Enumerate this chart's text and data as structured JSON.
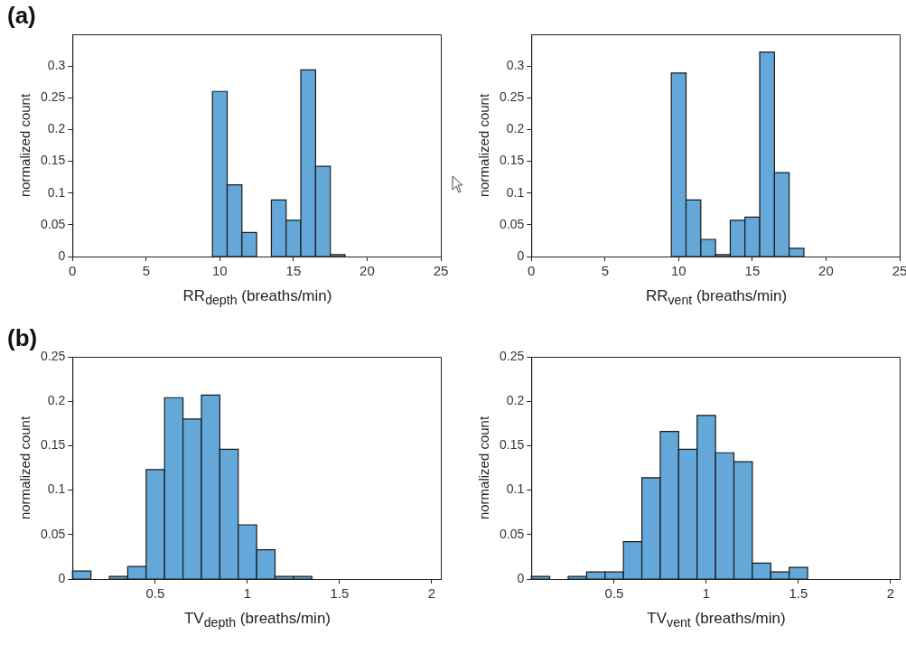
{
  "chart_data": [
    {
      "type": "histogram",
      "annotations": [
        "(a)"
      ],
      "xlabel": "RR$_{depth}$ (breaths/min)",
      "ylabel": "normalized count",
      "color": "#63a8d8",
      "grid": false,
      "bins": [
        9.5,
        10.5,
        11.5,
        12.5,
        13.5,
        14.5,
        15.5,
        16.5,
        17.5,
        18.5
      ],
      "values": [
        0.26,
        0.113,
        0.038,
        0,
        0.089,
        0.057,
        0.294,
        0.142,
        0.003
      ],
      "xlim": [
        0,
        25
      ],
      "xticks": [
        0,
        5,
        10,
        15,
        20,
        25
      ],
      "ylim": [
        0,
        0.35
      ],
      "yticks": [
        0,
        0.05,
        0.1,
        0.15,
        0.2,
        0.25,
        0.3
      ]
    },
    {
      "type": "histogram",
      "xlabel": "RR$_{vent}$ (breaths/min)",
      "ylabel": "normalized count",
      "color": "#63a8d8",
      "grid": false,
      "bins": [
        9.5,
        10.5,
        11.5,
        12.5,
        13.5,
        14.5,
        15.5,
        16.5,
        17.5,
        18.5
      ],
      "values": [
        0.289,
        0.089,
        0.027,
        0.003,
        0.057,
        0.062,
        0.322,
        0.132,
        0.013
      ],
      "xlim": [
        0,
        25
      ],
      "xticks": [
        0,
        5,
        10,
        15,
        20,
        25
      ],
      "ylim": [
        0,
        0.35
      ],
      "yticks": [
        0,
        0.05,
        0.1,
        0.15,
        0.2,
        0.25,
        0.3
      ]
    },
    {
      "type": "histogram",
      "annotations": [
        "(b)"
      ],
      "xlabel": "TV$_{depth}$ (breaths/min)",
      "ylabel": "normalized count",
      "color": "#63a8d8",
      "grid": false,
      "bins": [
        0.05,
        0.15,
        0.25,
        0.35,
        0.45,
        0.55,
        0.65,
        0.75,
        0.85,
        0.95,
        1.05,
        1.15,
        1.25,
        1.35
      ],
      "values": [
        0.009,
        0,
        0.003,
        0.014,
        0.123,
        0.204,
        0.18,
        0.207,
        0.146,
        0.061,
        0.033,
        0.003,
        0.003
      ],
      "xlim": [
        0.05,
        2.05
      ],
      "xticks": [
        0.5,
        1,
        1.5,
        2
      ],
      "ylim": [
        0,
        0.25
      ],
      "yticks": [
        0,
        0.05,
        0.1,
        0.15,
        0.2,
        0.25
      ]
    },
    {
      "type": "histogram",
      "xlabel": "TV$_{vent}$ (breaths/min)",
      "ylabel": "normalized count",
      "color": "#63a8d8",
      "grid": false,
      "bins": [
        0.05,
        0.15,
        0.25,
        0.35,
        0.45,
        0.55,
        0.65,
        0.75,
        0.85,
        0.95,
        1.05,
        1.15,
        1.25,
        1.35,
        1.45,
        1.55
      ],
      "values": [
        0.003,
        0,
        0.003,
        0.008,
        0.008,
        0.042,
        0.114,
        0.166,
        0.146,
        0.184,
        0.142,
        0.132,
        0.018,
        0.008,
        0.013
      ],
      "xlim": [
        0.05,
        2.05
      ],
      "xticks": [
        0.5,
        1,
        1.5,
        2
      ],
      "ylim": [
        0,
        0.25
      ],
      "yticks": [
        0,
        0.05,
        0.1,
        0.15,
        0.2,
        0.25
      ]
    }
  ]
}
